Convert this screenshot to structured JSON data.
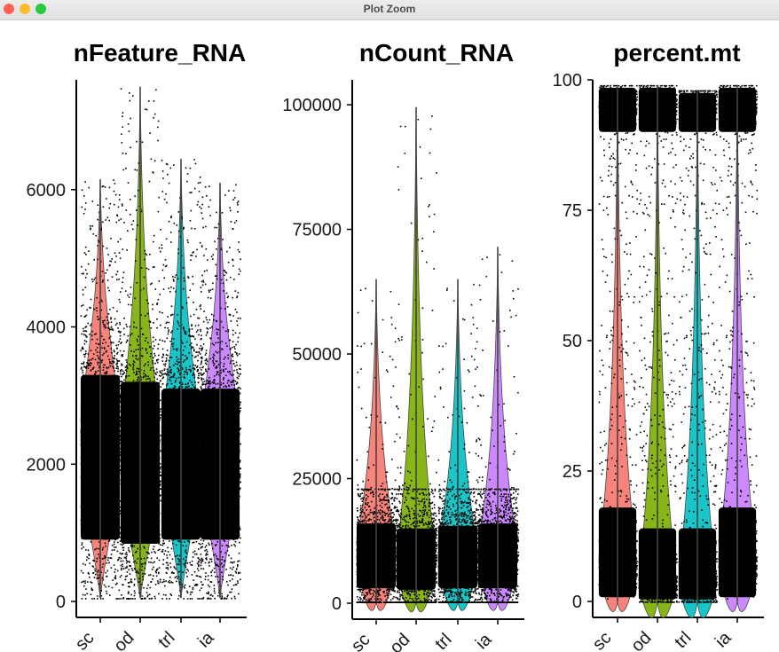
{
  "window": {
    "title": "Plot Zoom",
    "buttons": {
      "close_color": "#ff5f57",
      "minimize_color": "#febc2e",
      "zoom_color": "#28c840"
    }
  },
  "chart_data": [
    {
      "type": "violin",
      "title": "nFeature_RNA",
      "ylim": [
        0,
        7600
      ],
      "yticks": [
        0,
        2000,
        4000,
        6000
      ],
      "ytick_labels": [
        "0",
        "2000",
        "4000",
        "6000"
      ],
      "categories": [
        "sc",
        "od",
        "trl",
        "ia"
      ],
      "groups": [
        {
          "category": "sc",
          "color": "#f8766d",
          "max": 6150,
          "min": 50,
          "median": 2400,
          "q1": 1500,
          "q3": 3300
        },
        {
          "category": "od",
          "color": "#7cae00",
          "max": 7500,
          "min": 50,
          "median": 2200,
          "q1": 1400,
          "q3": 3200
        },
        {
          "category": "trl",
          "color": "#00bfc4",
          "max": 6450,
          "min": 50,
          "median": 2300,
          "q1": 1500,
          "q3": 3100
        },
        {
          "category": "ia",
          "color": "#c77cff",
          "max": 6100,
          "min": 50,
          "median": 2300,
          "q1": 1500,
          "q3": 3100
        }
      ],
      "grid": false,
      "legend": "none"
    },
    {
      "type": "violin",
      "title": "nCount_RNA",
      "ylim": [
        0,
        105000
      ],
      "yticks": [
        0,
        25000,
        50000,
        75000,
        100000
      ],
      "ytick_labels": [
        "0",
        "25000",
        "50000",
        "75000",
        "100000"
      ],
      "categories": [
        "sc",
        "od",
        "trl",
        "ia"
      ],
      "groups": [
        {
          "category": "sc",
          "color": "#f8766d",
          "max": 65000,
          "min": 300,
          "median": 10000,
          "q1": 5000,
          "q3": 16000
        },
        {
          "category": "od",
          "color": "#7cae00",
          "max": 99500,
          "min": 300,
          "median": 9000,
          "q1": 4500,
          "q3": 15000
        },
        {
          "category": "trl",
          "color": "#00bfc4",
          "max": 65000,
          "min": 300,
          "median": 9500,
          "q1": 5000,
          "q3": 15500
        },
        {
          "category": "ia",
          "color": "#c77cff",
          "max": 71500,
          "min": 300,
          "median": 10000,
          "q1": 5000,
          "q3": 16000
        }
      ],
      "grid": false,
      "legend": "none"
    },
    {
      "type": "violin",
      "title": "percent.mt",
      "ylim": [
        0,
        100
      ],
      "yticks": [
        0,
        25,
        50,
        75,
        100
      ],
      "ytick_labels": [
        "0",
        "25",
        "50",
        "75",
        "100"
      ],
      "categories": [
        "sc",
        "od",
        "trl",
        "ia"
      ],
      "groups": [
        {
          "category": "sc",
          "color": "#f8766d",
          "max": 99,
          "min": 0,
          "median": 8,
          "q1": 4,
          "q3": 14
        },
        {
          "category": "od",
          "color": "#7cae00",
          "max": 99,
          "min": 0,
          "median": 4,
          "q1": 2,
          "q3": 10
        },
        {
          "category": "trl",
          "color": "#00bfc4",
          "max": 98,
          "min": 0,
          "median": 4,
          "q1": 2,
          "q3": 10
        },
        {
          "category": "ia",
          "color": "#c77cff",
          "max": 99,
          "min": 0,
          "median": 8,
          "q1": 4,
          "q3": 14
        }
      ],
      "grid": false,
      "legend": "none"
    }
  ]
}
